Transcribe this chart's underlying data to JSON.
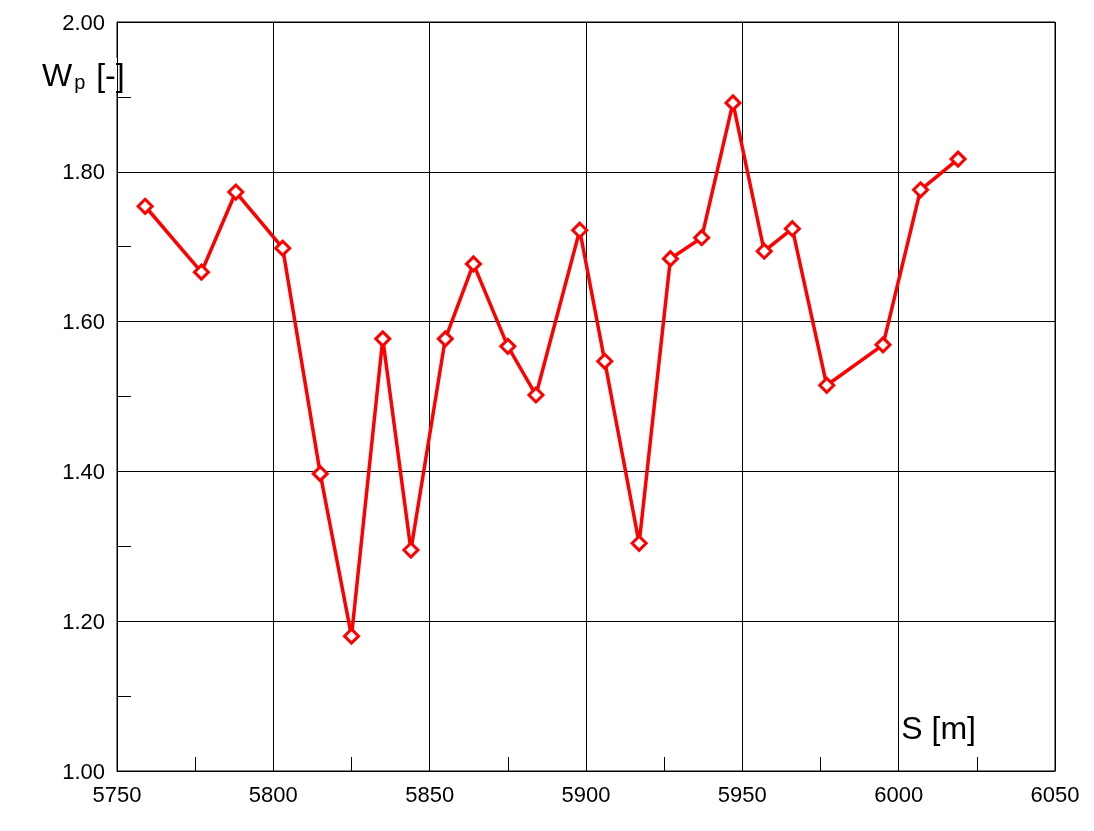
{
  "chart_data": {
    "type": "line",
    "xlabel": "S [m]",
    "ylabel": "W$_{p}$ [-]",
    "x": [
      5759,
      5777,
      5788,
      5803,
      5815,
      5825,
      5835,
      5844,
      5855,
      5864,
      5875,
      5884,
      5898,
      5906,
      5917,
      5927,
      5937,
      5947,
      5957,
      5966,
      5977,
      5995,
      6007,
      6019
    ],
    "series": [
      {
        "color": "#ff0000",
        "values": [
          1.754,
          1.666,
          1.773,
          1.698,
          1.397,
          1.18,
          1.577,
          1.295,
          1.577,
          1.677,
          1.567,
          1.502,
          1.722,
          1.547,
          1.304,
          1.684,
          1.712,
          1.892,
          1.694,
          1.724,
          1.515,
          1.569,
          1.776,
          1.817
        ]
      }
    ],
    "xlim": [
      5750,
      6050
    ],
    "xticks": [
      5750,
      {
        "value": 5775,
        "label": null
      },
      5800,
      {
        "value": 5825,
        "label": null
      },
      5850,
      {
        "value": 5875,
        "label": null
      },
      5900,
      {
        "value": 5925,
        "label": null
      },
      5950,
      {
        "value": 5975,
        "label": null
      },
      6000,
      {
        "value": 6025,
        "label": null
      },
      6050
    ],
    "ylim": [
      1,
      2
    ],
    "yticks": [
      {
        "value": 1,
        "label": "1.00"
      },
      {
        "value": 1.1,
        "label": null
      },
      {
        "value": 1.2,
        "label": "1.20"
      },
      {
        "value": 1.3,
        "label": null
      },
      {
        "value": 1.4,
        "label": "1.40"
      },
      {
        "value": 1.5,
        "label": null
      },
      {
        "value": 1.6,
        "label": "1.60"
      },
      {
        "value": 1.7,
        "label": null
      },
      {
        "value": 1.8,
        "label": "1.80"
      },
      {
        "value": 1.9,
        "label": null
      },
      {
        "value": 2,
        "label": "2.00"
      }
    ],
    "grid": true,
    "marker": "diamond",
    "line_style": "solid"
  }
}
